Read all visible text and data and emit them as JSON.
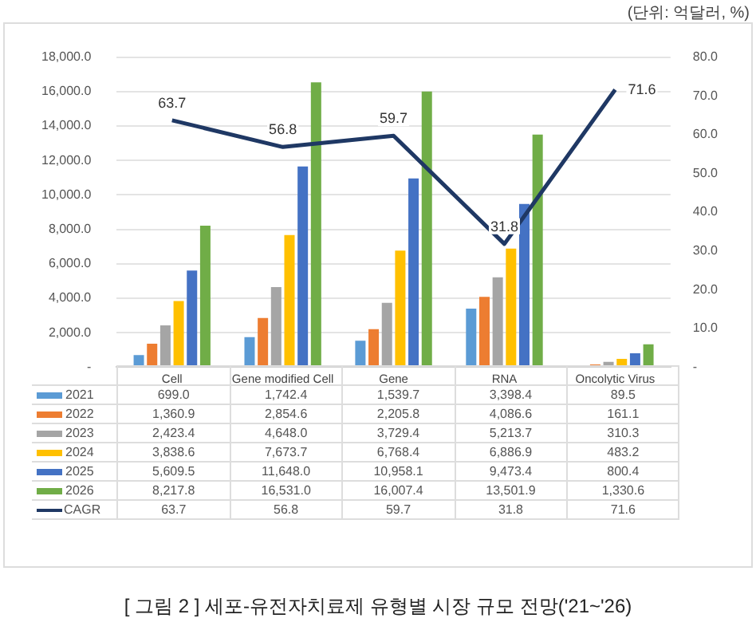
{
  "chart_data": {
    "type": "bar",
    "title": "[ 그림 2 ] 세포-유전자치료제 유형별 시장 규모 전망('21~'26)",
    "annotations": [
      "(단위: 억달러, %)"
    ],
    "categories": [
      "Cell",
      "Gene modified Cell",
      "Gene",
      "RNA",
      "Oncolytic Virus"
    ],
    "series": [
      {
        "name": "2021",
        "color": "#5b9bd5",
        "values": [
          699.0,
          1742.4,
          1539.7,
          3398.4,
          89.5
        ],
        "value_labels": [
          "699.0",
          "1,742.4",
          "1,539.7",
          "3,398.4",
          "89.5"
        ]
      },
      {
        "name": "2022",
        "color": "#ed7d31",
        "values": [
          1360.9,
          2854.6,
          2205.8,
          4086.6,
          161.1
        ],
        "value_labels": [
          "1,360.9",
          "2,854.6",
          "2,205.8",
          "4,086.6",
          "161.1"
        ]
      },
      {
        "name": "2023",
        "color": "#a5a5a5",
        "values": [
          2423.4,
          4648.0,
          3729.4,
          5213.7,
          310.3
        ],
        "value_labels": [
          "2,423.4",
          "4,648.0",
          "3,729.4",
          "5,213.7",
          "310.3"
        ]
      },
      {
        "name": "2024",
        "color": "#ffc000",
        "values": [
          3838.6,
          7673.7,
          6768.4,
          6886.9,
          483.2
        ],
        "value_labels": [
          "3,838.6",
          "7,673.7",
          "6,768.4",
          "6,886.9",
          "483.2"
        ]
      },
      {
        "name": "2025",
        "color": "#4472c4",
        "values": [
          5609.5,
          11648.0,
          10958.1,
          9473.4,
          800.4
        ],
        "value_labels": [
          "5,609.5",
          "11,648.0",
          "10,958.1",
          "9,473.4",
          "800.4"
        ]
      },
      {
        "name": "2026",
        "color": "#70ad47",
        "values": [
          8217.8,
          16531.0,
          16007.4,
          13501.9,
          1330.6
        ],
        "value_labels": [
          "8,217.8",
          "16,531.0",
          "16,007.4",
          "13,501.9",
          "1,330.6"
        ]
      },
      {
        "name": "CAGR",
        "type": "line",
        "axis": "y2",
        "color": "#1f3864",
        "marker": "none",
        "values": [
          63.7,
          56.8,
          59.7,
          31.8,
          71.6
        ],
        "value_labels": [
          "63.7",
          "56.8",
          "59.7",
          "31.8",
          "71.6"
        ]
      }
    ],
    "ylim": [
      0,
      18000
    ],
    "yticks": [
      {
        "value": 0,
        "label": "-"
      },
      {
        "value": 2000,
        "label": "2,000.0"
      },
      {
        "value": 4000,
        "label": "4,000.0"
      },
      {
        "value": 6000,
        "label": "6,000.0"
      },
      {
        "value": 8000,
        "label": "8,000.0"
      },
      {
        "value": 10000,
        "label": "10,000.0"
      },
      {
        "value": 12000,
        "label": "12,000.0"
      },
      {
        "value": 14000,
        "label": "14,000.0"
      },
      {
        "value": 16000,
        "label": "16,000.0"
      },
      {
        "value": 18000,
        "label": "18,000.0"
      }
    ],
    "y2lim": [
      0,
      80
    ],
    "y2ticks": [
      {
        "value": 0,
        "label": "-"
      },
      {
        "value": 10,
        "label": "10.0"
      },
      {
        "value": 20,
        "label": "20.0"
      },
      {
        "value": 30,
        "label": "30.0"
      },
      {
        "value": 40,
        "label": "40.0"
      },
      {
        "value": 50,
        "label": "50.0"
      },
      {
        "value": 60,
        "label": "60.0"
      },
      {
        "value": 70,
        "label": "70.0"
      },
      {
        "value": 80,
        "label": "80.0"
      }
    ],
    "grid": "y",
    "legend": "bottom"
  }
}
